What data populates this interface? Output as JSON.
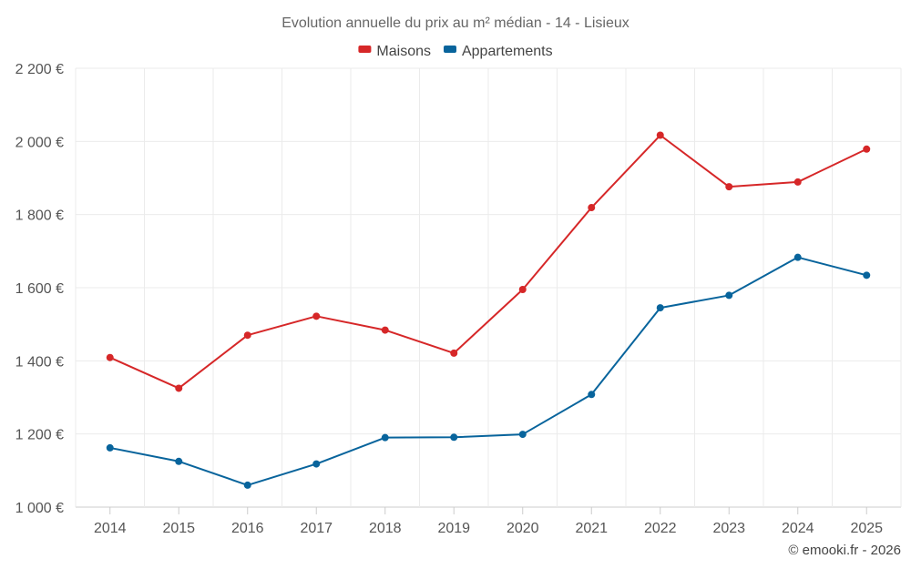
{
  "chart_data": {
    "type": "line",
    "title": "Evolution annuelle du prix au m² médian - 14 - Lisieux",
    "xlabel": "",
    "ylabel": "",
    "x": [
      "2014",
      "2015",
      "2016",
      "2017",
      "2018",
      "2019",
      "2020",
      "2021",
      "2022",
      "2023",
      "2024",
      "2025"
    ],
    "ylim": [
      1000,
      2200
    ],
    "yticks": [
      1000,
      1200,
      1400,
      1600,
      1800,
      2000,
      2200
    ],
    "ytick_labels": [
      "1 000 €",
      "1 200 €",
      "1 400 €",
      "1 600 €",
      "1 800 €",
      "2 000 €",
      "2 200 €"
    ],
    "grid": true,
    "legend_position": "top-center",
    "series": [
      {
        "name": "Maisons",
        "color": "#d62728",
        "values": [
          1409,
          1325,
          1470,
          1522,
          1484,
          1421,
          1595,
          1819,
          2017,
          1876,
          1889,
          1979
        ]
      },
      {
        "name": "Appartements",
        "color": "#08649c",
        "values": [
          1162,
          1125,
          1060,
          1118,
          1190,
          1191,
          1199,
          1308,
          1545,
          1579,
          1683,
          1634
        ]
      }
    ],
    "credit": "© emooki.fr - 2026"
  }
}
